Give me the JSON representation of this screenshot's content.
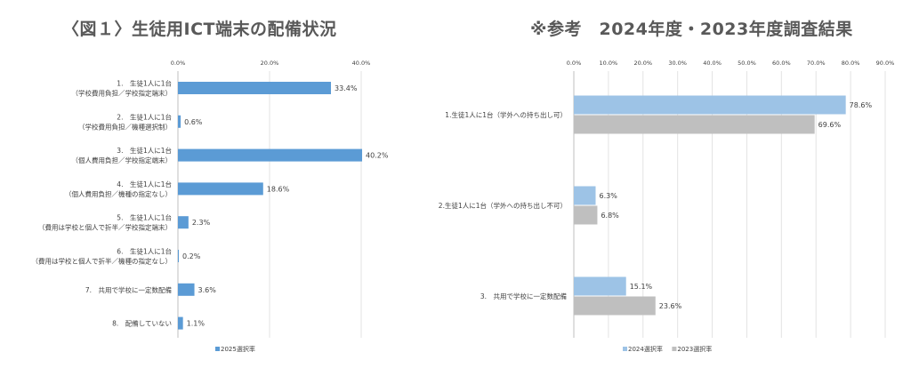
{
  "titles": {
    "left": "〈図１〉生徒用ICT端末の配備状況",
    "right": "※参考　2024年度・2023年度調査結果"
  },
  "chart_data": [
    {
      "type": "bar",
      "orientation": "horizontal",
      "title": "〈図１〉生徒用ICT端末の配備状況",
      "xlim": [
        0,
        40
      ],
      "ticks": [
        "0.0%",
        "20.0%",
        "40.0%"
      ],
      "tick_values": [
        0,
        20,
        40
      ],
      "categories": [
        [
          "1.　生徒1人に1台",
          "（学校費用負担／学校指定端末）"
        ],
        [
          "2.　生徒1人に1台",
          "（学校費用負担／機種選択制）"
        ],
        [
          "3.　生徒1人に1台",
          "（個人費用負担／学校指定端末）"
        ],
        [
          "4.　生徒1人に1台",
          "（個人費用負担／機種の指定なし）"
        ],
        [
          "5.　生徒1人に1台",
          "（費用は学校と個人で折半／学校指定端末）"
        ],
        [
          "6.　生徒1人に1台",
          "（費用は学校と個人で折半／機種の指定なし）"
        ],
        [
          "7.　共用で学校に一定数配備"
        ],
        [
          "8.　配備していない"
        ]
      ],
      "series": [
        {
          "name": "2025選択率",
          "color": "#5b9bd5",
          "values": [
            33.4,
            0.6,
            40.2,
            18.6,
            2.3,
            0.2,
            3.6,
            1.1
          ],
          "labels": [
            "33.4%",
            "0.6%",
            "40.2%",
            "18.6%",
            "2.3%",
            "0.2%",
            "3.6%",
            "1.1%"
          ]
        }
      ],
      "legend": "bottom",
      "grid": true
    },
    {
      "type": "bar",
      "orientation": "horizontal",
      "title": "※参考　2024年度・2023年度調査結果",
      "xlim": [
        0,
        90
      ],
      "ticks": [
        "0.0%",
        "10.0%",
        "20.0%",
        "30.0%",
        "40.0%",
        "50.0%",
        "60.0%",
        "70.0%",
        "80.0%",
        "90.0%"
      ],
      "tick_values": [
        0,
        10,
        20,
        30,
        40,
        50,
        60,
        70,
        80,
        90
      ],
      "categories": [
        [
          "1.生徒1人に1台（学外への持ち出し可）"
        ],
        [
          "2.生徒1人に1台（学外への持ち出し不可）"
        ],
        [
          "3.　共用で学校に一定数配備"
        ]
      ],
      "series": [
        {
          "name": "2024選択率",
          "color": "#9dc3e6",
          "values": [
            78.6,
            6.3,
            15.1
          ],
          "labels": [
            "78.6%",
            "6.3%",
            "15.1%"
          ]
        },
        {
          "name": "2023選択率",
          "color": "#bfbfbf",
          "values": [
            69.6,
            6.8,
            23.6
          ],
          "labels": [
            "69.6%",
            "6.8%",
            "23.6%"
          ]
        }
      ],
      "legend": "bottom",
      "grid": true
    }
  ]
}
